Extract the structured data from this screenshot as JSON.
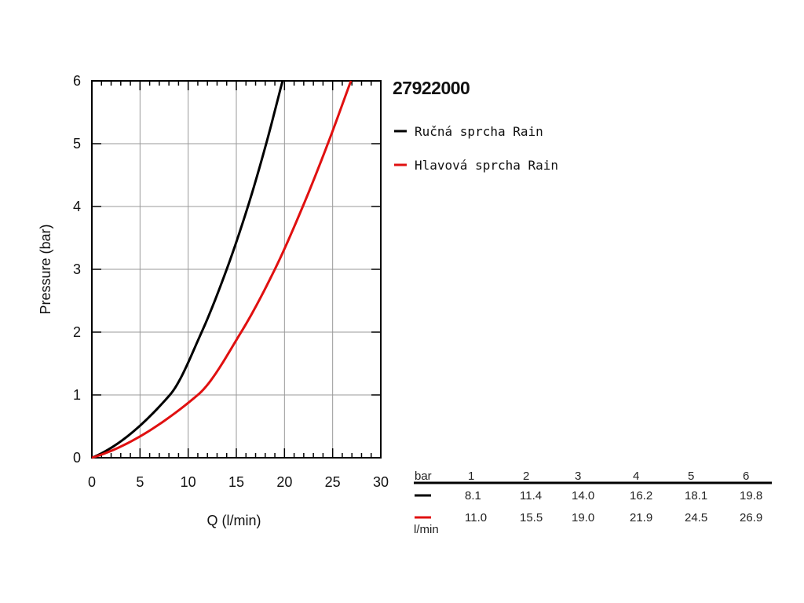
{
  "chart_data": {
    "type": "line",
    "title": "27922000",
    "xlabel": "Q (l/min)",
    "ylabel": "Pressure (bar)",
    "xlim": [
      0,
      30
    ],
    "ylim": [
      0,
      6
    ],
    "x_ticks": [
      "0",
      "5",
      "10",
      "15",
      "20",
      "25",
      "30"
    ],
    "y_ticks": [
      "0",
      "1",
      "2",
      "3",
      "4",
      "5",
      "6"
    ],
    "grid": true,
    "legend_position": "right",
    "series": [
      {
        "name": "Ručná sprcha Rain",
        "color": "#000000",
        "x": [
          0,
          8.1,
          11.4,
          14.0,
          16.2,
          18.1,
          19.8
        ],
        "y": [
          0,
          1,
          2,
          3,
          4,
          5,
          6
        ]
      },
      {
        "name": "Hlavová sprcha Rain",
        "color": "#e01010",
        "x": [
          0,
          11.0,
          15.5,
          19.0,
          21.9,
          24.5,
          26.9
        ],
        "y": [
          0,
          1,
          2,
          3,
          4,
          5,
          6
        ]
      }
    ]
  },
  "table": {
    "header_label": "bar",
    "unit_label": "l/min",
    "pressures": [
      "1",
      "2",
      "3",
      "4",
      "5",
      "6"
    ],
    "rows": [
      {
        "color": "#000000",
        "values": [
          "8.1",
          "11.4",
          "14.0",
          "16.2",
          "18.1",
          "19.8"
        ]
      },
      {
        "color": "#e01010",
        "values": [
          "11.0",
          "15.5",
          "19.0",
          "21.9",
          "24.5",
          "26.9"
        ]
      }
    ]
  }
}
